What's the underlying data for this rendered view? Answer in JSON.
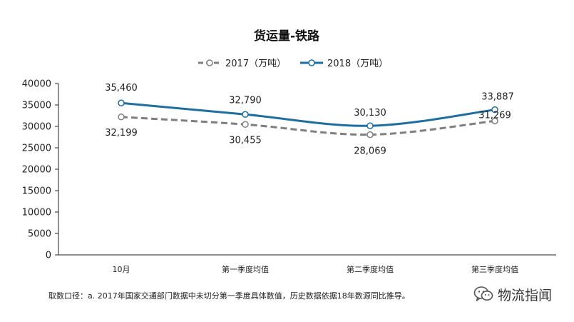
{
  "chart_data": {
    "type": "line",
    "title": "货运量-铁路",
    "xlabel": "",
    "ylabel": "",
    "categories": [
      "10月",
      "第一季度均值",
      "第二季度均值",
      "第三季度均值"
    ],
    "ylim": [
      0,
      40000
    ],
    "yticks": [
      "0",
      "5000",
      "10000",
      "15000",
      "20000",
      "25000",
      "30000",
      "35000",
      "40000"
    ],
    "grid": false,
    "legend_position": "top",
    "series": [
      {
        "name": "2017（万吨）",
        "values": [
          32199,
          30455,
          28069,
          31269
        ],
        "labels": [
          "32,199",
          "30,455",
          "28,069",
          "31,269"
        ],
        "color": "#7f7f7f",
        "style": "dashed"
      },
      {
        "name": "2018（万吨）",
        "values": [
          35460,
          32790,
          30130,
          33887
        ],
        "labels": [
          "35,460",
          "32,790",
          "30,130",
          "33,887"
        ],
        "color": "#1f6ea0",
        "style": "solid"
      }
    ]
  },
  "footnote": "取数口径：a. 2017年国家交通部门数据中未切分第一季度具体数值，历史数据依据18年数源同比推导。",
  "watermark": {
    "icon": "wechat-icon",
    "text": "物流指闻"
  }
}
